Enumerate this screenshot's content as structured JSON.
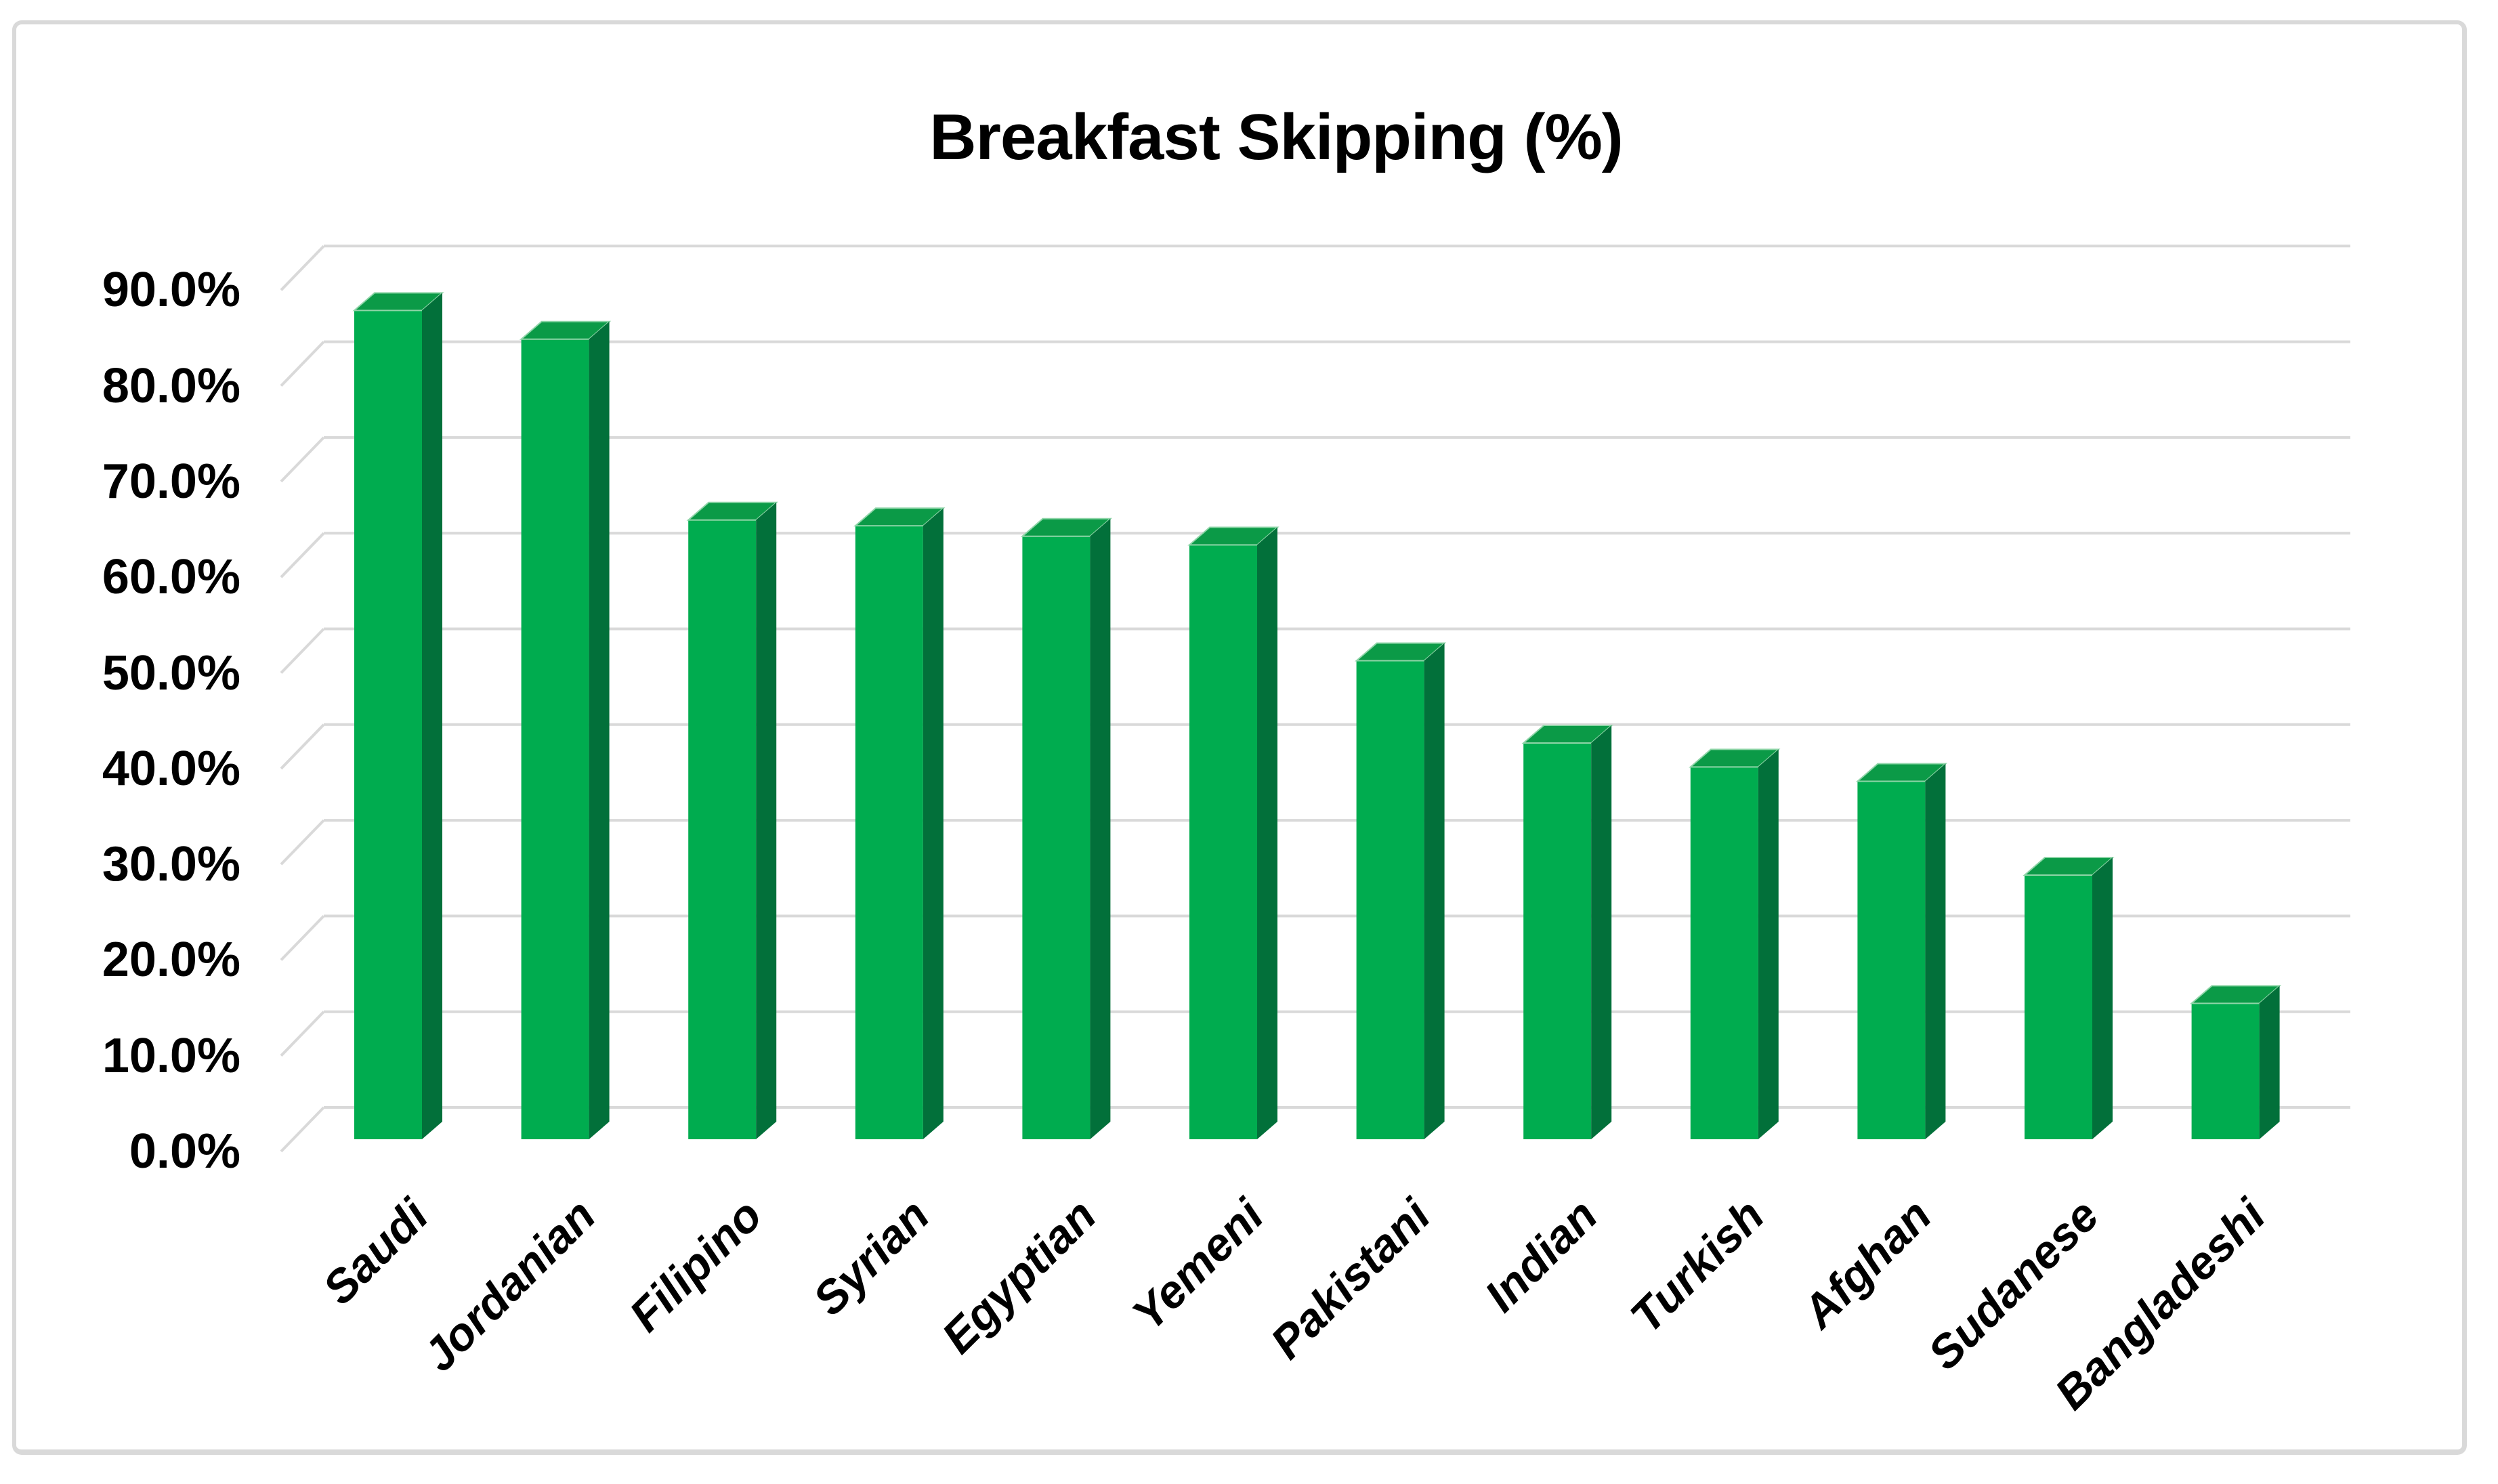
{
  "page": {
    "background": "#ffffff",
    "border_color": "#D9D9D9"
  },
  "chart_data": {
    "type": "bar",
    "style": "3d-column",
    "title": "Breakfast Skipping (%)",
    "categories": [
      "Saudi",
      "Jordanian",
      "Filipino",
      "Syrian",
      "Egyptian",
      "Yemeni",
      "Pakistani",
      "Indian",
      "Turkish",
      "Afghan",
      "Sudanese",
      "Bangladeshi"
    ],
    "values": [
      86.6,
      83.6,
      64.7,
      64.1,
      63.0,
      62.1,
      50.0,
      41.4,
      38.9,
      37.4,
      27.6,
      14.2
    ],
    "unit": "%",
    "xlabel": "",
    "ylabel": "",
    "ylim": [
      0,
      95
    ],
    "ytick_values": [
      0,
      10,
      20,
      30,
      40,
      50,
      60,
      70,
      80,
      90
    ],
    "ytick_labels": [
      "0.0%",
      "10.0%",
      "20.0%",
      "30.0%",
      "40.0%",
      "50.0%",
      "60.0%",
      "70.0%",
      "80.0%",
      "90.0%"
    ],
    "grid": true,
    "legend": false,
    "colors": {
      "bar_front": "#00AC4F",
      "bar_top": "#0B9A47",
      "bar_side": "#02703A",
      "bar_edge_light": "#8FD5A8",
      "gridline": "#D9D9D9",
      "text": "#000000"
    }
  }
}
